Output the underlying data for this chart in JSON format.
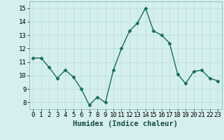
{
  "x": [
    0,
    1,
    2,
    3,
    4,
    5,
    6,
    7,
    8,
    9,
    10,
    11,
    12,
    13,
    14,
    15,
    16,
    17,
    18,
    19,
    20,
    21,
    22,
    23
  ],
  "y": [
    11.3,
    11.3,
    10.6,
    9.8,
    10.4,
    9.9,
    9.0,
    7.8,
    8.4,
    8.0,
    10.4,
    12.0,
    13.3,
    13.9,
    15.0,
    13.3,
    13.0,
    12.4,
    10.1,
    9.4,
    10.3,
    10.4,
    9.8,
    9.6
  ],
  "line_color": "#1a6b5e",
  "marker": "D",
  "marker_size": 2.5,
  "bg_color": "#d4efed",
  "grid_color": "#b8ddd9",
  "xlabel": "Humidex (Indice chaleur)",
  "ylim": [
    7.5,
    15.5
  ],
  "xlim": [
    -0.5,
    23.5
  ],
  "yticks": [
    8,
    9,
    10,
    11,
    12,
    13,
    14,
    15
  ],
  "xticks": [
    0,
    1,
    2,
    3,
    4,
    5,
    6,
    7,
    8,
    9,
    10,
    11,
    12,
    13,
    14,
    15,
    16,
    17,
    18,
    19,
    20,
    21,
    22,
    23
  ],
  "xlabel_fontsize": 7.5,
  "tick_fontsize": 6.5,
  "line_width": 1.0
}
